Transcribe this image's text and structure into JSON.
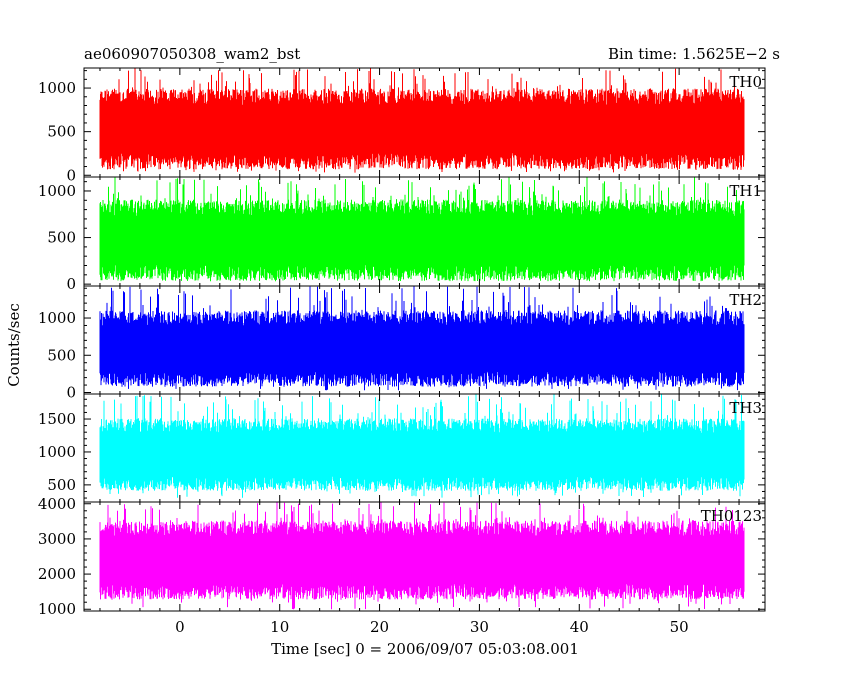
{
  "header": {
    "title": "ae060907050308_wam2_bst",
    "bin_time": "Bin time: 1.5625E−2 s"
  },
  "axes": {
    "ylabel": "Counts/sec",
    "xlabel": "Time [sec] 0 = 2006/09/07 05:03:08.001"
  },
  "chart_data": {
    "type": "line",
    "title": "ae060907050308_wam2_bst",
    "subtitle": "Bin time: 1.5625E−2 s",
    "xlabel": "Time [sec] 0 = 2006/09/07 05:03:08.001",
    "ylabel": "Counts/sec",
    "xlim": [
      -9.6,
      58.6
    ],
    "x_data_range": [
      -8,
      56.5
    ],
    "xticks": [
      0,
      10,
      20,
      30,
      40,
      50
    ],
    "panels": [
      {
        "name": "TH0",
        "color": "#ff0000",
        "ylim": [
          -20,
          1230
        ],
        "yticks": [
          0,
          500,
          1000
        ],
        "typical": {
          "low": 160,
          "high": 900
        },
        "range_min": 30,
        "range_max": 1230
      },
      {
        "name": "TH1",
        "color": "#00ff00",
        "ylim": [
          -20,
          1150
        ],
        "yticks": [
          0,
          500,
          1000
        ],
        "typical": {
          "low": 120,
          "high": 820
        },
        "range_min": 30,
        "range_max": 1150
      },
      {
        "name": "TH2",
        "color": "#0000ff",
        "ylim": [
          -20,
          1430
        ],
        "yticks": [
          0,
          500,
          1000
        ],
        "typical": {
          "low": 180,
          "high": 1000
        },
        "range_min": 30,
        "range_max": 1430
      },
      {
        "name": "TH3",
        "color": "#00ffff",
        "ylim": [
          240,
          1880
        ],
        "yticks": [
          500,
          1000,
          1500
        ],
        "typical": {
          "low": 520,
          "high": 1400
        },
        "range_min": 300,
        "range_max": 1880
      },
      {
        "name": "TH0123",
        "color": "#ff00ff",
        "ylim": [
          950,
          4050
        ],
        "yticks": [
          1000,
          2000,
          3000,
          4000
        ],
        "typical": {
          "low": 1500,
          "high": 3300
        },
        "range_min": 1000,
        "range_max": 4050
      }
    ],
    "grid": false,
    "legend": "none"
  }
}
